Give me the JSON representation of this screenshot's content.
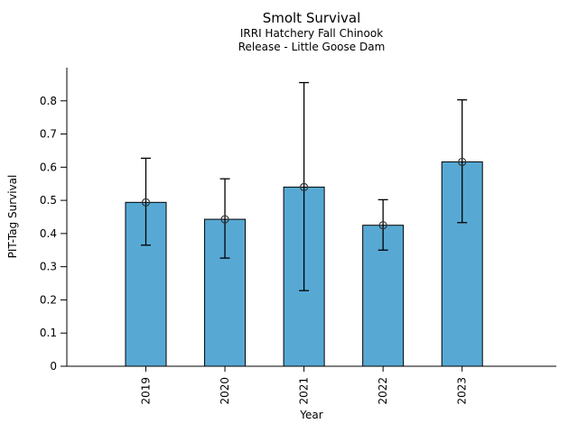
{
  "chart_data": {
    "type": "bar",
    "title": "Smolt Survival",
    "subtitle": [
      "IRRI Hatchery Fall Chinook",
      "Release - Little Goose Dam"
    ],
    "xlabel": "Year",
    "ylabel": "PIT-Tag Survival",
    "categories": [
      "2019",
      "2020",
      "2021",
      "2022",
      "2023"
    ],
    "values": [
      0.494,
      0.443,
      0.54,
      0.425,
      0.616
    ],
    "error_low": [
      0.365,
      0.326,
      0.228,
      0.35,
      0.433
    ],
    "error_high": [
      0.627,
      0.565,
      0.855,
      0.502,
      0.803
    ],
    "yticks": [
      0,
      0.1,
      0.2,
      0.3,
      0.4,
      0.5,
      0.6,
      0.7,
      0.8
    ],
    "ytick_labels": [
      "0",
      "0.1",
      "0.2",
      "0.3",
      "0.4",
      "0.5",
      "0.6",
      "0.7",
      "0.8"
    ],
    "ylim": [
      0,
      0.9
    ],
    "grid": false,
    "legend": null,
    "marker": "open-circle",
    "bar_color": "#57A9D4",
    "bar_edge_color": "#000000",
    "error_color": "#000000",
    "text_color": "#000000",
    "background_color": "#FFFFFF"
  }
}
